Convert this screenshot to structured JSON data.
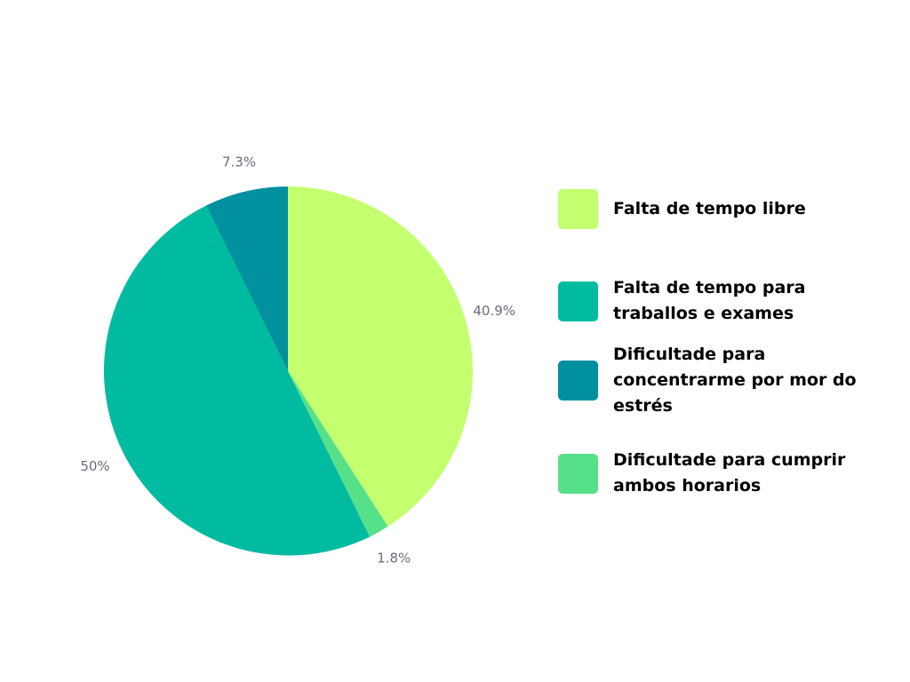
{
  "chart_data": {
    "type": "pie",
    "slices": [
      {
        "label": "Falta de tempo libre",
        "value": 40.9,
        "value_label": "40.9%",
        "color": "#c3ff6e"
      },
      {
        "label": "Dificultade para cumprir ambos horarios",
        "value": 1.8,
        "value_label": "1.8%",
        "color": "#57e08a"
      },
      {
        "label": "Falta de tempo para traballos e exames",
        "value": 50,
        "value_label": "50%",
        "color": "#00bba0"
      },
      {
        "label": "Dificultade para concentrarme por mor do estrés",
        "value": 7.3,
        "value_label": "7.3%",
        "color": "#00909e"
      }
    ],
    "legend_order": [
      "Falta de tempo libre",
      "Falta de tempo para traballos e exames",
      "Dificultade para concentrarme por mor do estrés",
      "Dificultade para cumprir ambos horarios"
    ],
    "legend_placement": "right",
    "start_angle": "top",
    "direction": "clockwise"
  },
  "legend": {
    "items": [
      {
        "label": "Falta de tempo libre",
        "color": "#c3ff6e"
      },
      {
        "label": "Falta de tempo para traballos e exames",
        "color": "#00bba0"
      },
      {
        "label": "Dificultade para concentrarme por mor do estrés",
        "color": "#00909e"
      },
      {
        "label": "Dificultade para cumprir ambos horarios",
        "color": "#57e08a"
      }
    ]
  }
}
